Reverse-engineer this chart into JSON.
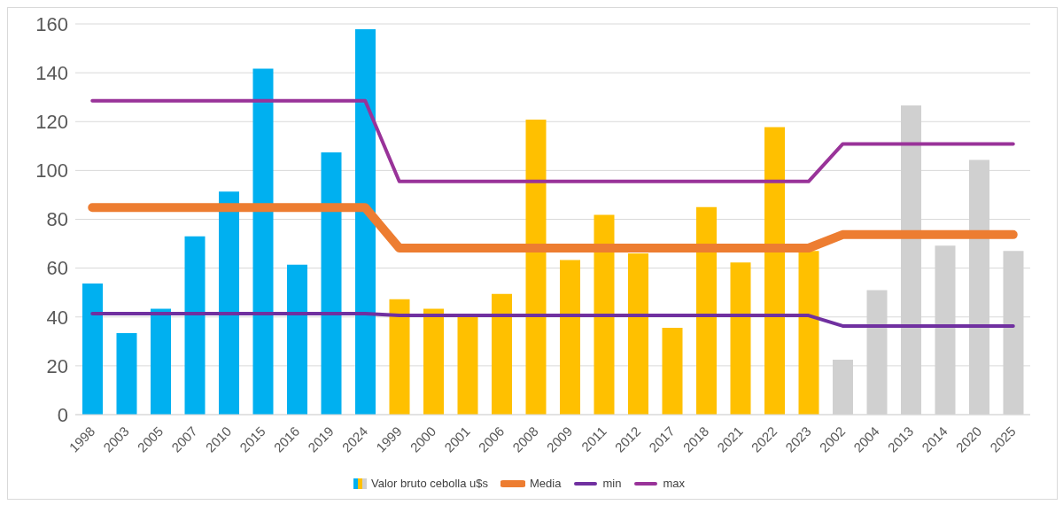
{
  "chart_data": {
    "type": "bar",
    "categories": [
      "1998",
      "2003",
      "2005",
      "2007",
      "2010",
      "2015",
      "2016",
      "2019",
      "2024",
      "1999",
      "2000",
      "2001",
      "2006",
      "2008",
      "2009",
      "2011",
      "2012",
      "2017",
      "2018",
      "2021",
      "2022",
      "2023",
      "2002",
      "2004",
      "2013",
      "2014",
      "2020",
      "2025"
    ],
    "series": [
      {
        "name": "Valor bruto cebolla u$s",
        "colors": [
          "#00b0f0",
          "#00b0f0",
          "#00b0f0",
          "#00b0f0",
          "#00b0f0",
          "#00b0f0",
          "#00b0f0",
          "#00b0f0",
          "#00b0f0",
          "#ffc000",
          "#ffc000",
          "#ffc000",
          "#ffc000",
          "#ffc000",
          "#ffc000",
          "#ffc000",
          "#ffc000",
          "#ffc000",
          "#ffc000",
          "#ffc000",
          "#ffc000",
          "#ffc000",
          "#d0d0d0",
          "#d0d0d0",
          "#d0d0d0",
          "#d0d0d0",
          "#d0d0d0",
          "#d0d0d0"
        ],
        "values": [
          53.7,
          33.4,
          43.4,
          73,
          91.3,
          141.7,
          61.4,
          107.4,
          157.8,
          47.3,
          43.4,
          39.9,
          49.4,
          120.8,
          63.3,
          81.8,
          66,
          35.6,
          85,
          62.3,
          117.7,
          67,
          22.5,
          51,
          126.6,
          69.2,
          104.3,
          67
        ]
      },
      {
        "name": "Media",
        "type": "line",
        "color": "#ed7d31",
        "values": [
          84.8,
          84.8,
          84.8,
          84.8,
          84.8,
          84.8,
          84.8,
          84.8,
          84.8,
          68.2,
          68.2,
          68.2,
          68.2,
          68.2,
          68.2,
          68.2,
          68.2,
          68.2,
          68.2,
          68.2,
          68.2,
          68.2,
          73.7,
          73.7,
          73.7,
          73.7,
          73.7,
          73.7
        ]
      },
      {
        "name": "min",
        "type": "line",
        "color": "#7030a0",
        "values": [
          41.4,
          41.4,
          41.4,
          41.4,
          41.4,
          41.4,
          41.4,
          41.4,
          41.4,
          40.6,
          40.6,
          40.6,
          40.6,
          40.6,
          40.6,
          40.6,
          40.6,
          40.6,
          40.6,
          40.6,
          40.6,
          40.6,
          36.3,
          36.3,
          36.3,
          36.3,
          36.3,
          36.3
        ]
      },
      {
        "name": "max",
        "type": "line",
        "color": "#993399",
        "values": [
          128.5,
          128.5,
          128.5,
          128.5,
          128.5,
          128.5,
          128.5,
          128.5,
          128.5,
          95.5,
          95.5,
          95.5,
          95.5,
          95.5,
          95.5,
          95.5,
          95.5,
          95.5,
          95.5,
          95.5,
          95.5,
          95.5,
          110.8,
          110.8,
          110.8,
          110.8,
          110.8,
          110.8
        ]
      }
    ],
    "ylim": [
      0,
      160
    ],
    "yticks": [
      0,
      20,
      40,
      60,
      80,
      100,
      120,
      140,
      160
    ],
    "grid": "y",
    "legend": "bottom",
    "marker": "none",
    "line_style": "solid"
  }
}
